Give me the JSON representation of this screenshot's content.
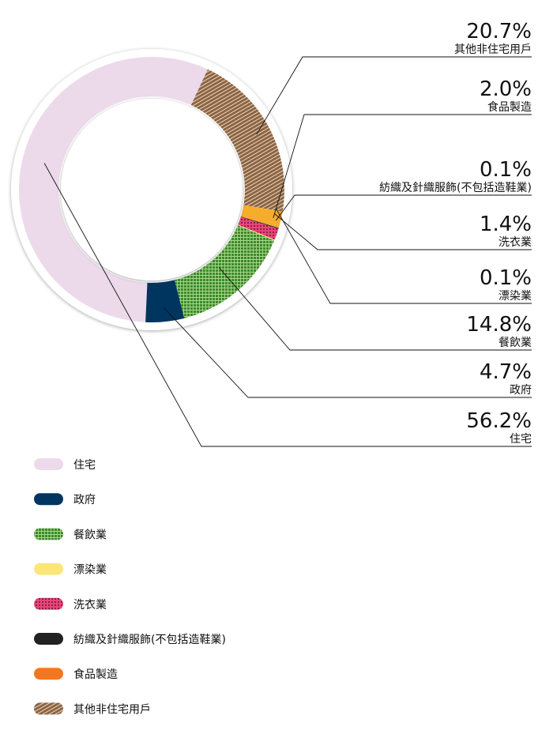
{
  "chart_data": {
    "type": "pie",
    "donut": true,
    "legend_position": "bottom-left",
    "slices": [
      {
        "name": "住宅",
        "value": 56.2,
        "label": "56.2%",
        "color": "#ecdaeb",
        "pattern": "solid"
      },
      {
        "name": "政府",
        "value": 4.7,
        "label": "4.7%",
        "color": "#003560",
        "pattern": "solid"
      },
      {
        "name": "餐飲業",
        "value": 14.8,
        "label": "14.8%",
        "color": "#3d8a29",
        "pattern": "grid"
      },
      {
        "name": "漂染業",
        "value": 0.1,
        "label": "0.1%",
        "color": "#fce67a",
        "pattern": "solid"
      },
      {
        "name": "洗衣業",
        "value": 1.4,
        "label": "1.4%",
        "color": "#e8457a",
        "pattern": "dots"
      },
      {
        "name": "紡織及針織服飾(不包括造鞋業)",
        "value": 0.1,
        "label": "0.1%",
        "color": "#222222",
        "pattern": "solid"
      },
      {
        "name": "食品製造",
        "value": 2.0,
        "label": "2.0%",
        "color": "#f6ad2e",
        "pattern": "solid"
      },
      {
        "name": "其他非住宅用戶",
        "value": 20.7,
        "label": "20.7%",
        "color": "#8c6442",
        "pattern": "diagonal"
      }
    ],
    "legend": [
      {
        "name": "住宅",
        "color": "#ecdaeb",
        "pattern": "solid"
      },
      {
        "name": "政府",
        "color": "#003560",
        "pattern": "solid"
      },
      {
        "name": "餐飲業",
        "color": "#3d8a29",
        "pattern": "grid"
      },
      {
        "name": "漂染業",
        "color": "#fce67a",
        "pattern": "solid"
      },
      {
        "name": "洗衣業",
        "color": "#e8457a",
        "pattern": "dots"
      },
      {
        "name": "紡織及針織服飾(不包括造鞋業)",
        "color": "#222222",
        "pattern": "solid"
      },
      {
        "name": "食品製造",
        "color": "#f37721",
        "pattern": "solid"
      },
      {
        "name": "其他非住宅用戶",
        "color": "#8c6442",
        "pattern": "diagonal"
      }
    ],
    "callout_order": [
      "其他非住宅用戶",
      "食品製造",
      "紡織及針織服飾(不包括造鞋業)",
      "洗衣業",
      "漂染業",
      "餐飲業",
      "政府",
      "住宅"
    ]
  }
}
